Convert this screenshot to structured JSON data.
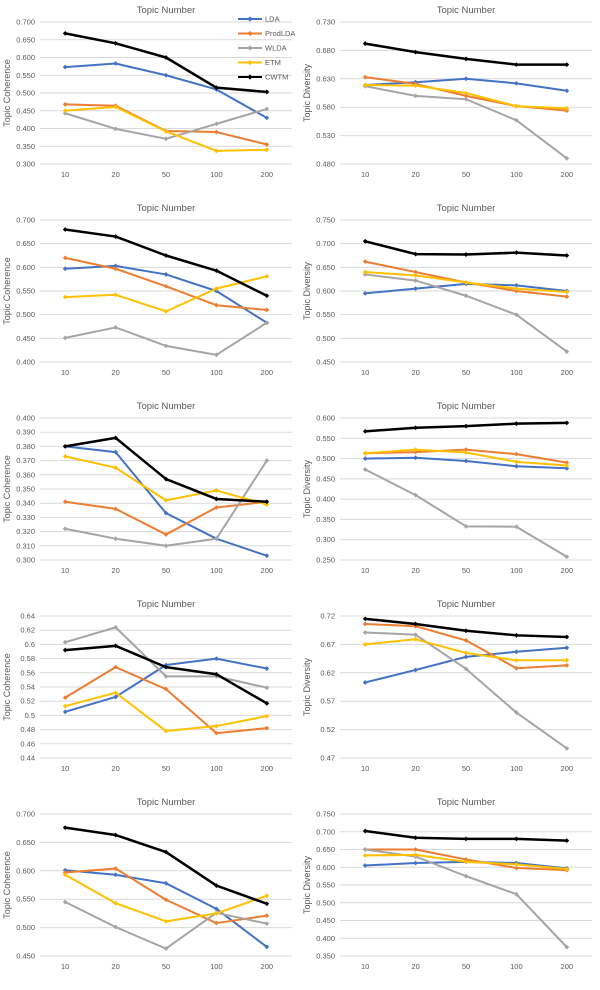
{
  "page": {
    "background": "#ffffff"
  },
  "colors": {
    "LDA": "#4472C4",
    "ProdLDA": "#ED7D31",
    "WLDA": "#A5A5A5",
    "ETM": "#FFC000",
    "CWTM": "#000000"
  },
  "style": {
    "gridline_color": "#D9D9D9",
    "axis_text_color": "#595959"
  },
  "legend": {
    "chart_index": 0,
    "position": "top-right",
    "entries": [
      "LDA",
      "ProdLDA",
      "WLDA",
      "ETM",
      "CWTM"
    ]
  },
  "chart_data": [
    {
      "type": "line",
      "title": "Topic Number",
      "ylabel": "Topic Coherence",
      "grid": true,
      "x_categories": [
        "10",
        "20",
        "50",
        "100",
        "200"
      ],
      "ylim": [
        0.3,
        0.7
      ],
      "ytick_labels": [
        "0.300",
        "0.350",
        "0.400",
        "0.450",
        "0.500",
        "0.550",
        "0.600",
        "0.650",
        "0.700"
      ],
      "series": [
        {
          "name": "LDA",
          "values": [
            0.573,
            0.583,
            0.55,
            0.51,
            0.43
          ]
        },
        {
          "name": "ProdLDA",
          "values": [
            0.468,
            0.464,
            0.393,
            0.39,
            0.355
          ]
        },
        {
          "name": "WLDA",
          "values": [
            0.443,
            0.399,
            0.371,
            0.413,
            0.455
          ]
        },
        {
          "name": "ETM",
          "values": [
            0.45,
            0.461,
            0.392,
            0.337,
            0.34
          ]
        },
        {
          "name": "CWTM",
          "values": [
            0.668,
            0.64,
            0.6,
            0.515,
            0.503
          ]
        }
      ]
    },
    {
      "type": "line",
      "title": "Topic Number",
      "ylabel": "Topic Diversity",
      "grid": true,
      "x_categories": [
        "10",
        "20",
        "50",
        "100",
        "200"
      ],
      "ylim": [
        0.48,
        0.73
      ],
      "ytick_labels": [
        "0.480",
        "0.530",
        "0.580",
        "0.630",
        "0.680",
        "0.730"
      ],
      "series": [
        {
          "name": "LDA",
          "values": [
            0.619,
            0.624,
            0.63,
            0.622,
            0.609
          ]
        },
        {
          "name": "ProdLDA",
          "values": [
            0.633,
            0.621,
            0.6,
            0.582,
            0.574
          ]
        },
        {
          "name": "WLDA",
          "values": [
            0.617,
            0.6,
            0.594,
            0.557,
            0.49
          ]
        },
        {
          "name": "ETM",
          "values": [
            0.619,
            0.618,
            0.605,
            0.582,
            0.578
          ]
        },
        {
          "name": "CWTM",
          "values": [
            0.692,
            0.677,
            0.665,
            0.655,
            0.655
          ]
        }
      ]
    },
    {
      "type": "line",
      "title": "Topic Number",
      "ylabel": "Topic Coherence",
      "grid": true,
      "x_categories": [
        "10",
        "20",
        "50",
        "100",
        "200"
      ],
      "ylim": [
        0.4,
        0.7
      ],
      "ytick_labels": [
        "0.400",
        "0.450",
        "0.500",
        "0.550",
        "0.600",
        "0.650",
        "0.700"
      ],
      "series": [
        {
          "name": "LDA",
          "values": [
            0.597,
            0.603,
            0.585,
            0.55,
            0.483
          ]
        },
        {
          "name": "ProdLDA",
          "values": [
            0.62,
            0.597,
            0.56,
            0.52,
            0.51
          ]
        },
        {
          "name": "WLDA",
          "values": [
            0.451,
            0.473,
            0.434,
            0.415,
            0.483
          ]
        },
        {
          "name": "ETM",
          "values": [
            0.537,
            0.542,
            0.507,
            0.555,
            0.581
          ]
        },
        {
          "name": "CWTM",
          "values": [
            0.68,
            0.665,
            0.625,
            0.593,
            0.54
          ]
        }
      ]
    },
    {
      "type": "line",
      "title": "Topic Number",
      "ylabel": "Topic Diversity",
      "grid": true,
      "x_categories": [
        "10",
        "20",
        "50",
        "100",
        "200"
      ],
      "ylim": [
        0.45,
        0.75
      ],
      "ytick_labels": [
        "0.450",
        "0.500",
        "0.550",
        "0.600",
        "0.650",
        "0.700",
        "0.750"
      ],
      "series": [
        {
          "name": "LDA",
          "values": [
            0.595,
            0.605,
            0.615,
            0.612,
            0.6
          ]
        },
        {
          "name": "ProdLDA",
          "values": [
            0.662,
            0.64,
            0.618,
            0.6,
            0.588
          ]
        },
        {
          "name": "WLDA",
          "values": [
            0.635,
            0.622,
            0.59,
            0.55,
            0.472
          ]
        },
        {
          "name": "ETM",
          "values": [
            0.64,
            0.633,
            0.618,
            0.605,
            0.598
          ]
        },
        {
          "name": "CWTM",
          "values": [
            0.705,
            0.678,
            0.677,
            0.681,
            0.675
          ]
        }
      ]
    },
    {
      "type": "line",
      "title": "Topic Number",
      "ylabel": "Topic Coherence",
      "grid": true,
      "x_categories": [
        "10",
        "20",
        "50",
        "100",
        "200"
      ],
      "ylim": [
        0.3,
        0.4
      ],
      "ytick_labels": [
        "0.300",
        "0.310",
        "0.320",
        "0.330",
        "0.340",
        "0.350",
        "0.360",
        "0.370",
        "0.380",
        "0.390",
        "0.400"
      ],
      "series": [
        {
          "name": "LDA",
          "values": [
            0.38,
            0.376,
            0.333,
            0.315,
            0.303
          ]
        },
        {
          "name": "ProdLDA",
          "values": [
            0.341,
            0.336,
            0.318,
            0.337,
            0.341
          ]
        },
        {
          "name": "WLDA",
          "values": [
            0.322,
            0.315,
            0.31,
            0.315,
            0.37
          ]
        },
        {
          "name": "ETM",
          "values": [
            0.373,
            0.365,
            0.342,
            0.349,
            0.339
          ]
        },
        {
          "name": "CWTM",
          "values": [
            0.38,
            0.386,
            0.357,
            0.343,
            0.341
          ]
        }
      ]
    },
    {
      "type": "line",
      "title": "Topic Number",
      "ylabel": "Topic Diversity",
      "grid": true,
      "x_categories": [
        "10",
        "20",
        "50",
        "100",
        "200"
      ],
      "ylim": [
        0.25,
        0.6
      ],
      "ytick_labels": [
        "0.250",
        "0.300",
        "0.350",
        "0.400",
        "0.450",
        "0.500",
        "0.550",
        "0.600"
      ],
      "series": [
        {
          "name": "LDA",
          "values": [
            0.5,
            0.502,
            0.494,
            0.481,
            0.476
          ]
        },
        {
          "name": "ProdLDA",
          "values": [
            0.513,
            0.516,
            0.522,
            0.511,
            0.49
          ]
        },
        {
          "name": "WLDA",
          "values": [
            0.473,
            0.41,
            0.333,
            0.332,
            0.258
          ]
        },
        {
          "name": "ETM",
          "values": [
            0.513,
            0.522,
            0.515,
            0.492,
            0.483
          ]
        },
        {
          "name": "CWTM",
          "values": [
            0.567,
            0.576,
            0.58,
            0.586,
            0.588
          ]
        }
      ]
    },
    {
      "type": "line",
      "title": "Topic Number",
      "ylabel": "Topic Coherence",
      "grid": true,
      "x_categories": [
        "10",
        "20",
        "50",
        "100",
        "200"
      ],
      "ylim": [
        0.44,
        0.64
      ],
      "ytick_labels": [
        "0.44",
        "0.46",
        "0.48",
        "0.5",
        "0.52",
        "0.54",
        "0.56",
        "0.58",
        "0.6",
        "0.62",
        "0.64"
      ],
      "series": [
        {
          "name": "LDA",
          "values": [
            0.505,
            0.526,
            0.571,
            0.58,
            0.566
          ]
        },
        {
          "name": "ProdLDA",
          "values": [
            0.525,
            0.568,
            0.537,
            0.475,
            0.482
          ]
        },
        {
          "name": "WLDA",
          "values": [
            0.603,
            0.624,
            0.555,
            0.555,
            0.539
          ]
        },
        {
          "name": "ETM",
          "values": [
            0.513,
            0.532,
            0.478,
            0.485,
            0.499
          ]
        },
        {
          "name": "CWTM",
          "values": [
            0.592,
            0.598,
            0.568,
            0.558,
            0.517
          ]
        }
      ]
    },
    {
      "type": "line",
      "title": "Topic Number",
      "ylabel": "Topic Diversity",
      "grid": true,
      "x_categories": [
        "10",
        "20",
        "50",
        "100",
        "200"
      ],
      "ylim": [
        0.47,
        0.72
      ],
      "ytick_labels": [
        "0.47",
        "0.52",
        "0.57",
        "0.62",
        "0.67",
        "0.72"
      ],
      "series": [
        {
          "name": "LDA",
          "values": [
            0.603,
            0.625,
            0.648,
            0.657,
            0.664
          ]
        },
        {
          "name": "ProdLDA",
          "values": [
            0.706,
            0.702,
            0.677,
            0.628,
            0.633
          ]
        },
        {
          "name": "WLDA",
          "values": [
            0.691,
            0.687,
            0.627,
            0.55,
            0.487
          ]
        },
        {
          "name": "ETM",
          "values": [
            0.67,
            0.679,
            0.655,
            0.642,
            0.642
          ]
        },
        {
          "name": "CWTM",
          "values": [
            0.715,
            0.706,
            0.694,
            0.686,
            0.683
          ]
        }
      ]
    },
    {
      "type": "line",
      "title": "Topic Number",
      "ylabel": "Topic Coherence",
      "grid": true,
      "x_categories": [
        "10",
        "20",
        "50",
        "100",
        "200"
      ],
      "ylim": [
        0.45,
        0.7
      ],
      "ytick_labels": [
        "0.450",
        "0.500",
        "0.550",
        "0.600",
        "0.650",
        "0.700"
      ],
      "series": [
        {
          "name": "LDA",
          "values": [
            0.601,
            0.593,
            0.578,
            0.533,
            0.466
          ]
        },
        {
          "name": "ProdLDA",
          "values": [
            0.597,
            0.604,
            0.549,
            0.508,
            0.521
          ]
        },
        {
          "name": "WLDA",
          "values": [
            0.545,
            0.501,
            0.463,
            0.526,
            0.507
          ]
        },
        {
          "name": "ETM",
          "values": [
            0.593,
            0.543,
            0.511,
            0.525,
            0.556
          ]
        },
        {
          "name": "CWTM",
          "values": [
            0.676,
            0.663,
            0.633,
            0.574,
            0.542
          ]
        }
      ]
    },
    {
      "type": "line",
      "title": "Topic Number",
      "ylabel": "Topic Diversity",
      "grid": true,
      "x_categories": [
        "10",
        "20",
        "50",
        "100",
        "200"
      ],
      "ylim": [
        0.35,
        0.75
      ],
      "ytick_labels": [
        "0.350",
        "0.400",
        "0.450",
        "0.500",
        "0.550",
        "0.600",
        "0.650",
        "0.700",
        "0.750"
      ],
      "series": [
        {
          "name": "LDA",
          "values": [
            0.605,
            0.612,
            0.615,
            0.612,
            0.597
          ]
        },
        {
          "name": "ProdLDA",
          "values": [
            0.65,
            0.65,
            0.622,
            0.598,
            0.592
          ]
        },
        {
          "name": "WLDA",
          "values": [
            0.65,
            0.63,
            0.575,
            0.524,
            0.375
          ]
        },
        {
          "name": "ETM",
          "values": [
            0.633,
            0.635,
            0.615,
            0.608,
            0.595
          ]
        },
        {
          "name": "CWTM",
          "values": [
            0.702,
            0.683,
            0.68,
            0.68,
            0.675
          ]
        }
      ]
    }
  ]
}
